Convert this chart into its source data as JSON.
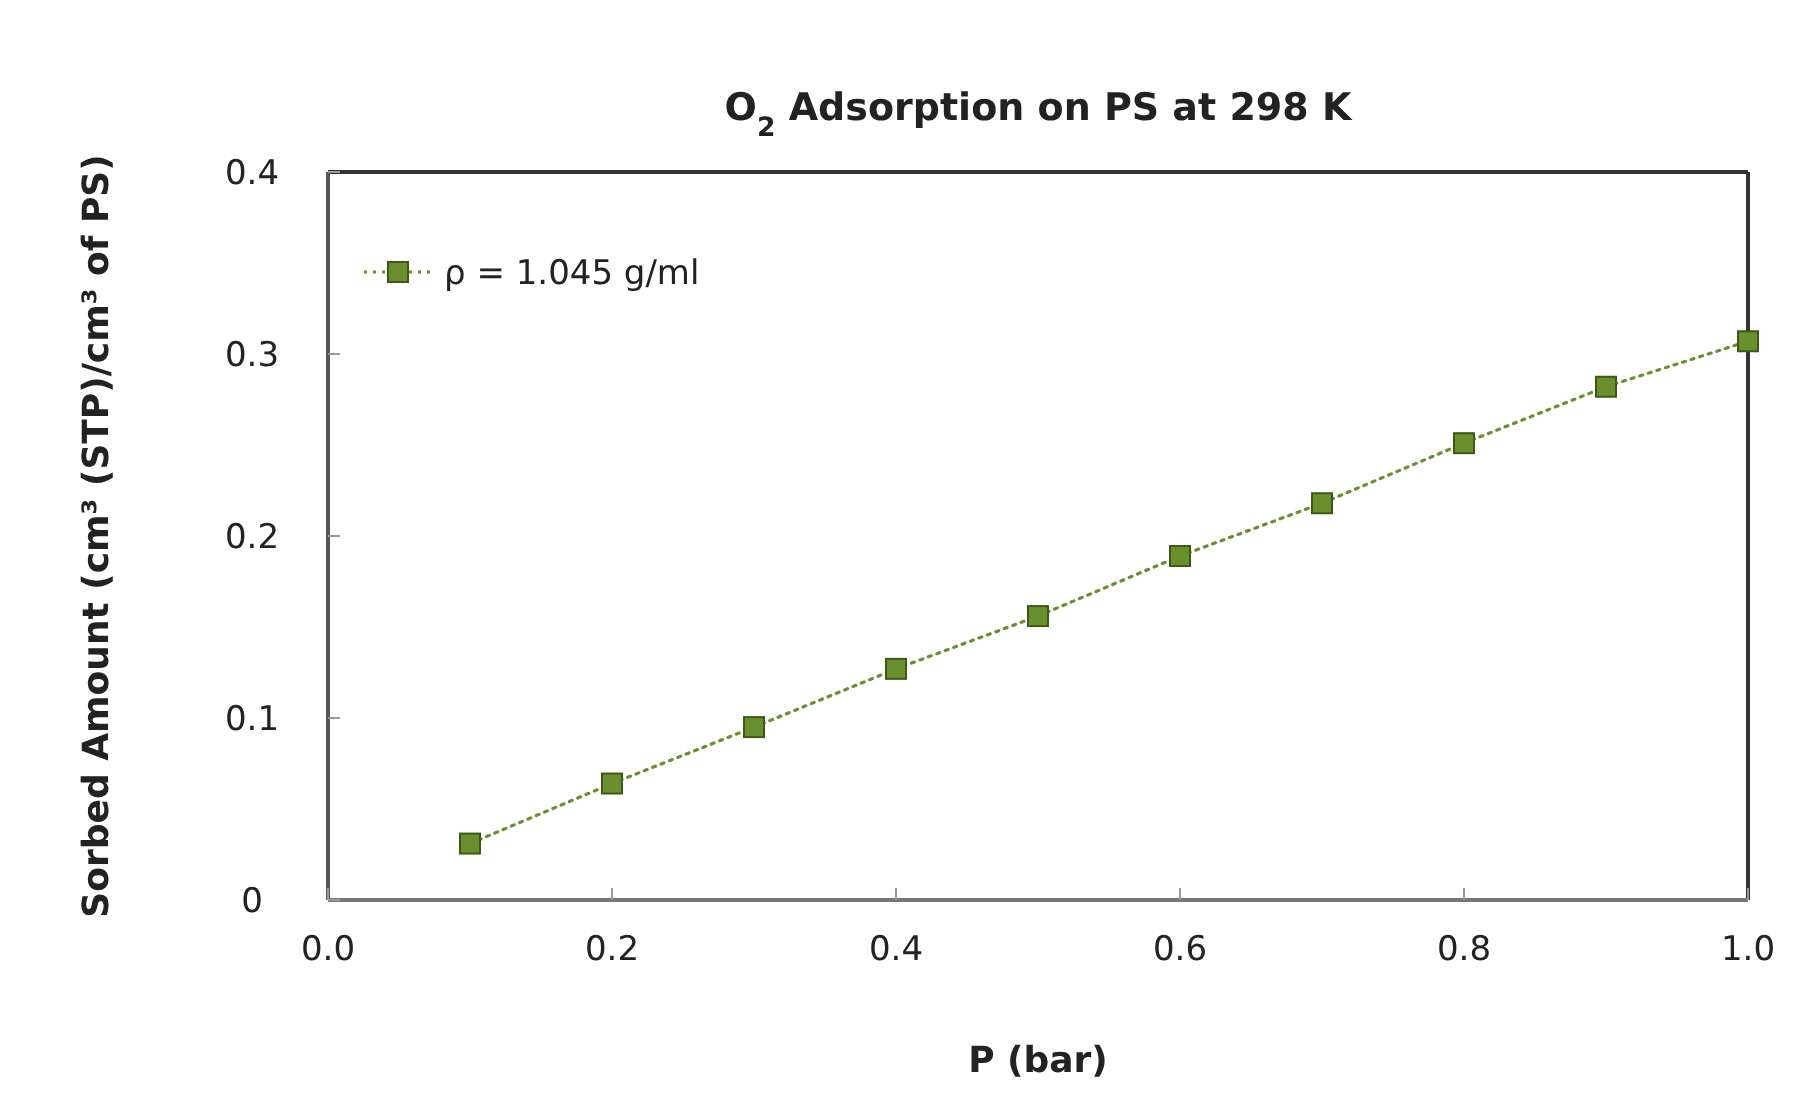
{
  "chart_data": {
    "type": "line",
    "title": "O$_{2}$ Adsorption on PS at 298 K",
    "xlabel": "P (bar)",
    "ylabel": "Sorbed Amount (cm³ (STP)/cm³ of PS)",
    "x": [
      0.1,
      0.2,
      0.3,
      0.4,
      0.5,
      0.6,
      0.7,
      0.8,
      0.9,
      1.0
    ],
    "series": [
      {
        "name": "ρ = 1.045 g/ml",
        "color": "#6a8f2e",
        "values": [
          0.031,
          0.064,
          0.095,
          0.127,
          0.156,
          0.189,
          0.218,
          0.251,
          0.282,
          0.307
        ]
      }
    ],
    "xlim": [
      0,
      1
    ],
    "xticks": [
      {
        "value": 0,
        "label": "0.0"
      },
      0.2,
      0.4,
      0.6,
      0.8,
      {
        "value": 1,
        "label": "1.0"
      }
    ],
    "ylim": [
      0,
      0.4
    ],
    "yticks": [
      0,
      0.1,
      0.2,
      0.3,
      0.4
    ],
    "grid": false,
    "legend": "top left",
    "marker": "square",
    "line_style": "dotted"
  }
}
